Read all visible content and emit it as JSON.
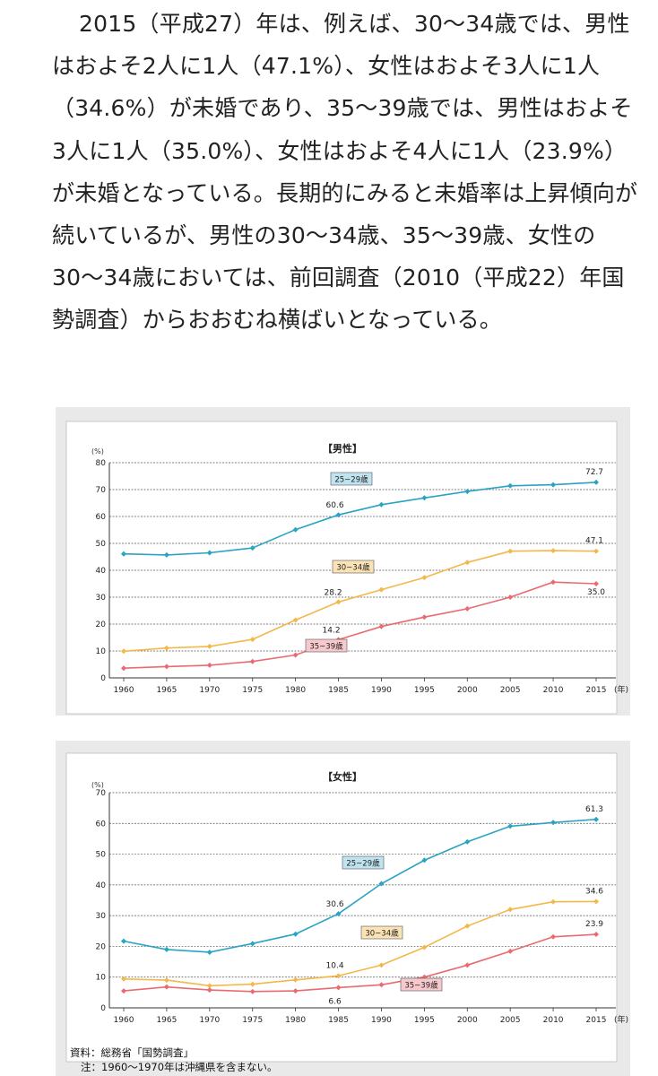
{
  "article": {
    "paragraph": "2015（平成27）年は、例えば、30〜34歳では、男性はおよそ2人に1人（47.1%）、女性はおよそ3人に1人（34.6%）が未婚であり、35〜39歳では、男性はおよそ3人に1人（35.0%）、女性はおよそ4人に1人（23.9%）が未婚となっている。長期的にみると未婚率は上昇傾向が続いているが、男性の30〜34歳、35〜39歳、女性の30〜34歳においては、前回調査（2010（平成22）年国勢調査）からおおむね横ばいとなっている。"
  },
  "colors": {
    "series_25_29": "#2aa3c4",
    "series_30_34": "#f4b84a",
    "series_35_39": "#ea6a72",
    "label_25_29_bg": "#bfe3ef",
    "label_30_34_bg": "#fbe2b4",
    "label_35_39_bg": "#f7c9cd",
    "panel_bg": "#e9e9e9"
  },
  "chart_data": [
    {
      "type": "line",
      "title": "【男性】",
      "unit_label": "(%)",
      "x_unit_label": "(年)",
      "categories": [
        "1960",
        "1965",
        "1970",
        "1975",
        "1980",
        "1985",
        "1990",
        "1995",
        "2000",
        "2005",
        "2010",
        "2015"
      ],
      "ylim": [
        0,
        80
      ],
      "yticks": [
        0,
        10,
        20,
        30,
        40,
        50,
        60,
        70,
        80
      ],
      "grid": true,
      "series": [
        {
          "name": "25~29歳",
          "color_key": "series_25_29",
          "label_bg_key": "label_25_29_bg",
          "values": [
            46.1,
            45.7,
            46.5,
            48.3,
            55.1,
            60.6,
            64.4,
            66.9,
            69.3,
            71.4,
            71.8,
            72.7
          ]
        },
        {
          "name": "30~34歳",
          "color_key": "series_30_34",
          "label_bg_key": "label_30_34_bg",
          "values": [
            9.9,
            11.1,
            11.7,
            14.3,
            21.5,
            28.2,
            32.8,
            37.3,
            42.9,
            47.1,
            47.3,
            47.1
          ]
        },
        {
          "name": "35~39歳",
          "color_key": "series_35_39",
          "label_bg_key": "label_35_39_bg",
          "values": [
            3.6,
            4.2,
            4.7,
            6.1,
            8.5,
            14.2,
            19.1,
            22.6,
            25.7,
            30.0,
            35.6,
            35.0
          ]
        }
      ],
      "annotations": [
        {
          "series": 0,
          "index": 5,
          "text": "60.6"
        },
        {
          "series": 0,
          "index": 11,
          "text": "72.7"
        },
        {
          "series": 1,
          "index": 5,
          "text": "28.2"
        },
        {
          "series": 1,
          "index": 11,
          "text": "47.1"
        },
        {
          "series": 2,
          "index": 5,
          "text": "14.2"
        },
        {
          "series": 2,
          "index": 11,
          "text": "35.0"
        }
      ]
    },
    {
      "type": "line",
      "title": "【女性】",
      "unit_label": "(%)",
      "x_unit_label": "(年)",
      "categories": [
        "1960",
        "1965",
        "1970",
        "1975",
        "1980",
        "1985",
        "1990",
        "1995",
        "2000",
        "2005",
        "2010",
        "2015"
      ],
      "ylim": [
        0,
        70
      ],
      "yticks": [
        0,
        10,
        20,
        30,
        40,
        50,
        60,
        70
      ],
      "grid": true,
      "series": [
        {
          "name": "25~29歳",
          "color_key": "series_25_29",
          "label_bg_key": "label_25_29_bg",
          "values": [
            21.7,
            19.0,
            18.1,
            20.9,
            24.0,
            30.6,
            40.4,
            48.0,
            54.0,
            59.1,
            60.3,
            61.3
          ]
        },
        {
          "name": "30~34歳",
          "color_key": "series_30_34",
          "label_bg_key": "label_30_34_bg",
          "values": [
            9.4,
            9.0,
            7.2,
            7.7,
            9.1,
            10.4,
            13.9,
            19.7,
            26.6,
            32.0,
            34.5,
            34.6
          ]
        },
        {
          "name": "35~39歳",
          "color_key": "series_35_39",
          "label_bg_key": "label_35_39_bg",
          "values": [
            5.5,
            6.8,
            5.8,
            5.3,
            5.5,
            6.6,
            7.5,
            10.0,
            13.9,
            18.4,
            23.1,
            23.9
          ]
        }
      ],
      "annotations": [
        {
          "series": 0,
          "index": 5,
          "text": "30.6"
        },
        {
          "series": 0,
          "index": 11,
          "text": "61.3"
        },
        {
          "series": 1,
          "index": 5,
          "text": "10.4"
        },
        {
          "series": 1,
          "index": 11,
          "text": "34.6"
        },
        {
          "series": 2,
          "index": 5,
          "text": "6.6"
        },
        {
          "series": 2,
          "index": 11,
          "text": "23.9"
        }
      ]
    }
  ],
  "source": {
    "line1": "資料：総務省「国勢調査」",
    "line2": "注：1960〜1970年は沖縄県を含まない。"
  }
}
